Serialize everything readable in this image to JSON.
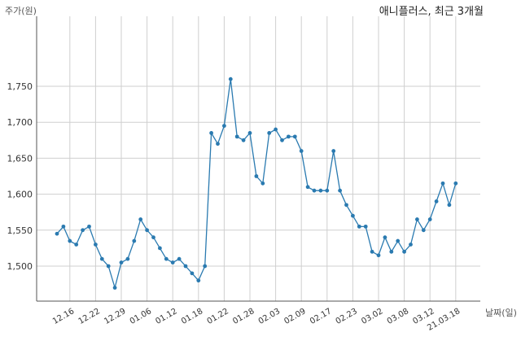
{
  "chart_data": {
    "type": "line",
    "title": "애니플러스, 최근 3개월",
    "ylabel": "주가(원)",
    "xlabel": "날짜(일)",
    "ylim": [
      1450,
      1775
    ],
    "yticks": [
      1500,
      1550,
      1600,
      1650,
      1700,
      1750
    ],
    "ytick_labels": [
      "1,500",
      "1,550",
      "1,600",
      "1,650",
      "1,700",
      "1,750"
    ],
    "grid": true,
    "color": "#2a7ab0",
    "xticks": [
      {
        "label": "12.16",
        "index": 2
      },
      {
        "label": "12.22",
        "index": 6
      },
      {
        "label": "12.29",
        "index": 10
      },
      {
        "label": "01.06",
        "index": 14
      },
      {
        "label": "01.12",
        "index": 18
      },
      {
        "label": "01.18",
        "index": 22
      },
      {
        "label": "01.22",
        "index": 26
      },
      {
        "label": "01.28",
        "index": 30
      },
      {
        "label": "02.03",
        "index": 34
      },
      {
        "label": "02.09",
        "index": 38
      },
      {
        "label": "02.17",
        "index": 42
      },
      {
        "label": "02.23",
        "index": 46
      },
      {
        "label": "03.02",
        "index": 50
      },
      {
        "label": "03.08",
        "index": 54
      },
      {
        "label": "03.12",
        "index": 58
      },
      {
        "label": "21.03.18",
        "index": 62
      }
    ],
    "series": [
      {
        "values": [
          1545,
          1555,
          1535,
          1530,
          1550,
          1555,
          1530,
          1510,
          1500,
          1470,
          1505,
          1510,
          1535,
          1565,
          1550,
          1540,
          1525,
          1510,
          1505,
          1510,
          1500,
          1490,
          1480,
          1500,
          1685,
          1670,
          1695,
          1760,
          1680,
          1675,
          1685,
          1625,
          1615,
          1685,
          1690,
          1675,
          1680,
          1680,
          1660,
          1610,
          1605,
          1605,
          1605,
          1660,
          1605,
          1585,
          1570,
          1555,
          1555,
          1520,
          1515,
          1540,
          1520,
          1535,
          1520,
          1530,
          1565,
          1550,
          1565,
          1590,
          1615,
          1585,
          1615
        ]
      }
    ]
  }
}
